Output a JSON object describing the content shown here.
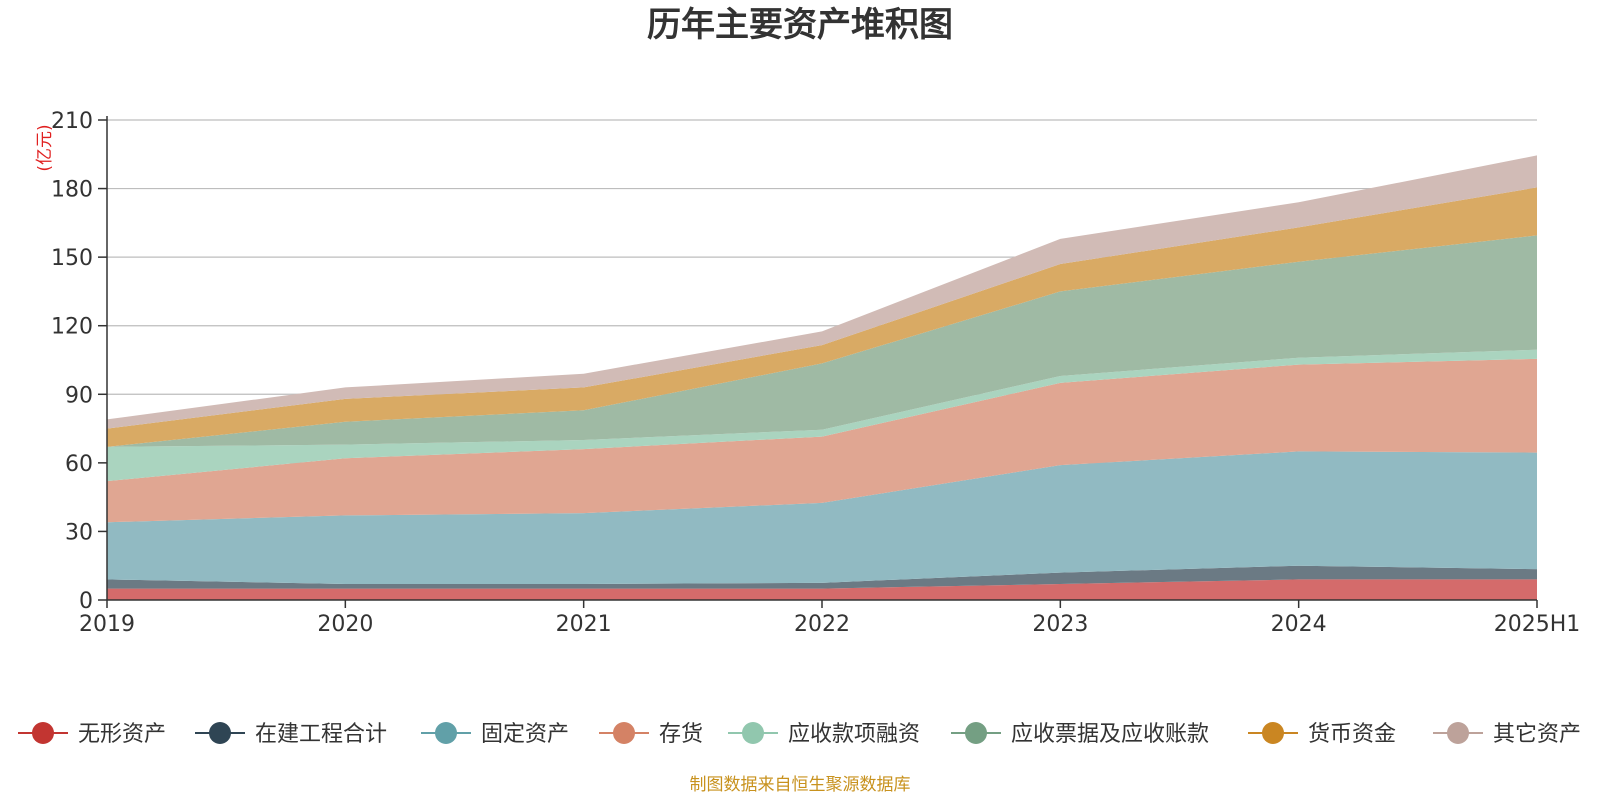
{
  "chart_data": {
    "type": "area",
    "stacked": true,
    "title": "历年主要资产堆积图",
    "unit_label": "(亿元)",
    "source": "制图数据来自恒生聚源数据库",
    "categories": [
      "2019",
      "2020",
      "2021",
      "2022",
      "2023",
      "2024",
      "2025H1"
    ],
    "ylim": [
      0,
      210
    ],
    "yticks": [
      0,
      30,
      60,
      90,
      120,
      150,
      180,
      210
    ],
    "grid": true,
    "legend_position": "bottom",
    "series": [
      {
        "name": "无形资产",
        "color": "#c23531",
        "area_color": "#d46b6b",
        "values": [
          5,
          5,
          5,
          5,
          7,
          9,
          9
        ]
      },
      {
        "name": "在建工程合计",
        "color": "#2f4554",
        "area_color": "#6b7a84",
        "values": [
          4,
          2,
          2,
          2.5,
          5,
          6,
          4.5
        ]
      },
      {
        "name": "固定资产",
        "color": "#61a0a8",
        "area_color": "#91bac2",
        "values": [
          25,
          30,
          31,
          35,
          47,
          50,
          51
        ]
      },
      {
        "name": "存货",
        "color": "#d48265",
        "area_color": "#e0a692",
        "values": [
          18,
          25,
          28,
          29,
          36,
          38,
          41
        ]
      },
      {
        "name": "应收款项融资",
        "color": "#91c7ae",
        "area_color": "#aad4bf",
        "values": [
          15,
          6,
          4,
          3,
          3,
          3,
          4
        ]
      },
      {
        "name": "应收票据及应收账款",
        "color": "#749f83",
        "area_color": "#9fbaa4",
        "values": [
          0,
          10,
          13,
          29,
          37,
          42,
          50
        ]
      },
      {
        "name": "货币资金",
        "color": "#ca8622",
        "area_color": "#d9aa64",
        "values": [
          8,
          10,
          10,
          8,
          12,
          15,
          21
        ]
      },
      {
        "name": "其它资产",
        "color": "#bda29a",
        "area_color": "#d1bbb6",
        "values": [
          4,
          5,
          6,
          6,
          11,
          11,
          14
        ]
      }
    ]
  }
}
